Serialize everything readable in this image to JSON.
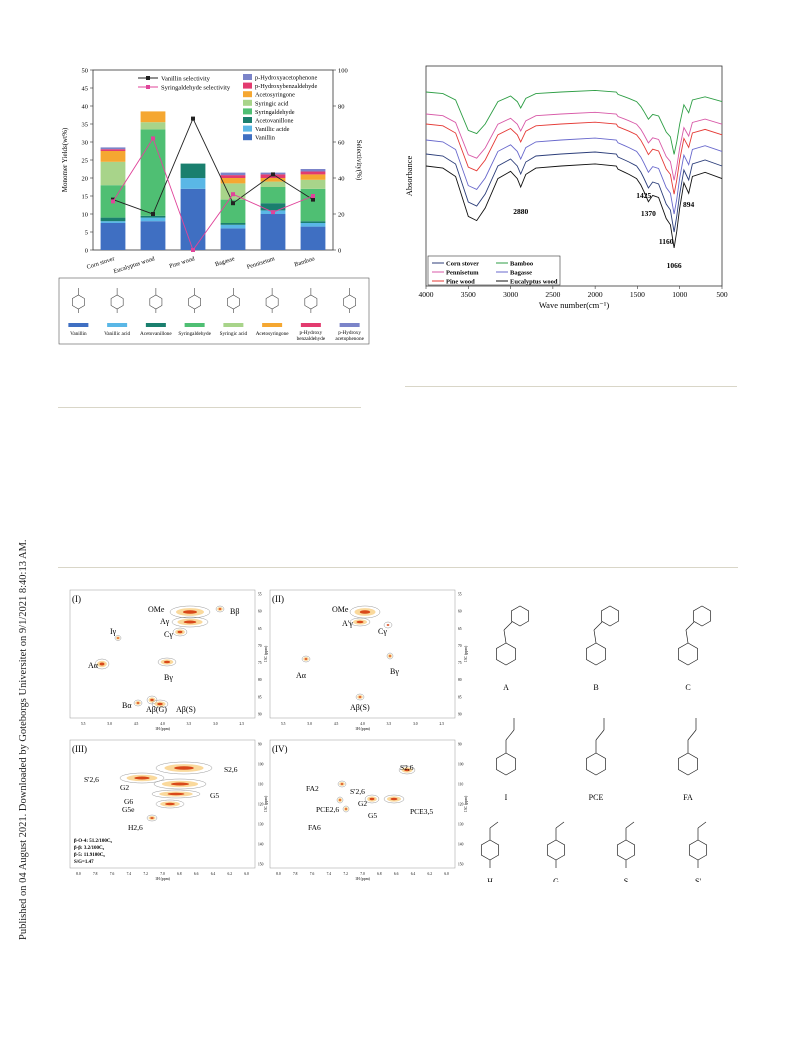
{
  "sidebar": {
    "publisher_note": "Published on 04 August 2021. Downloaded by Goteborgs Universitet on 9/1/2021 8:40:13 AM."
  },
  "chart_data": [
    {
      "type": "bar",
      "stacked": true,
      "categories": [
        "Corn stover",
        "Eucalyptus wood",
        "Pine wood",
        "Bagasse",
        "Pennisetum",
        "Bamboo"
      ],
      "ylabel": "Monomer Yields(wt%)",
      "y2label": "Selectivity(%)",
      "ylim": [
        0,
        50
      ],
      "y2lim": [
        0,
        100
      ],
      "yticks": [
        "0",
        "5",
        "10",
        "15",
        "20",
        "25",
        "30",
        "35",
        "40",
        "45",
        "50"
      ],
      "y2ticks": [
        "0",
        "20",
        "40",
        "60",
        "80",
        "100"
      ],
      "series": [
        {
          "name": "Vanillin",
          "color": "#3f6fc2",
          "values": [
            7.5,
            8,
            17,
            6,
            10,
            6.5
          ]
        },
        {
          "name": "Vanillic acide",
          "color": "#5ab7e6",
          "values": [
            0.5,
            1,
            3,
            1,
            1,
            1
          ]
        },
        {
          "name": "Acetovanillone",
          "color": "#1a7f6e",
          "values": [
            1,
            0.5,
            4,
            0.5,
            2,
            0.5
          ]
        },
        {
          "name": "Syringaldehyde",
          "color": "#4fbf73",
          "values": [
            9,
            24,
            0,
            6.5,
            4.5,
            9
          ]
        },
        {
          "name": "Syringic acid",
          "color": "#a8d48a",
          "values": [
            6.5,
            2,
            0,
            4.5,
            1.5,
            2.5
          ]
        },
        {
          "name": "Acetosyringone",
          "color": "#f5a731",
          "values": [
            3,
            3,
            0,
            1.5,
            1,
            1.5
          ]
        },
        {
          "name": "p-Hydroxybenzaldehyde",
          "color": "#e33b6f",
          "values": [
            0.5,
            0,
            0,
            0.8,
            1,
            0.8
          ]
        },
        {
          "name": "p-Hydroxyacetophenone",
          "color": "#7b84c9",
          "values": [
            0.5,
            0,
            0,
            0.7,
            0.5,
            0.7
          ]
        }
      ],
      "lines": [
        {
          "name": "Vanillin selectivity",
          "color": "#222222",
          "values": [
            28,
            20,
            73,
            26,
            42,
            28
          ]
        },
        {
          "name": "Syringaldehyde  selectivity",
          "color": "#e0449a",
          "values": [
            27,
            62,
            0,
            31,
            21,
            30
          ]
        }
      ],
      "structure_labels": [
        "Vanillin",
        "Vanillic acid",
        "Acetovanillone",
        "Syringaldehyde",
        "Syringic acid",
        "Acetosyringone",
        "p-Hydroxy benzaldehyde",
        "p-Hydroxy acetophenone"
      ]
    },
    {
      "type": "line",
      "xlabel": "Wave number(cm⁻¹)",
      "ylabel": "Absorbance",
      "xlim": [
        4000,
        500
      ],
      "xticks": [
        "4000",
        "3500",
        "3000",
        "2500",
        "2000",
        "1500",
        "1000",
        "500"
      ],
      "annotations": [
        "2880",
        "1425",
        "1370",
        "894",
        "1160",
        "1066"
      ],
      "series": [
        {
          "name": "Bamboo",
          "color": "#2e9e45"
        },
        {
          "name": "Pennisetum",
          "color": "#d85aa8"
        },
        {
          "name": "Pine wood",
          "color": "#e53a36"
        },
        {
          "name": "Bagasse",
          "color": "#6868cc"
        },
        {
          "name": "Corn stover",
          "color": "#2c3e7a"
        },
        {
          "name": "Eucalyptus wood",
          "color": "#111111"
        }
      ]
    }
  ],
  "nmr": {
    "panels": [
      "(I)",
      "(II)",
      "(III)",
      "(IV)"
    ],
    "p1_labels": [
      "OMe",
      "Bβ",
      "Aγ",
      "Cγ",
      "Iγ",
      "Aα",
      "Bγ",
      "Bα",
      "Aβ(G)",
      "Aβ(S)"
    ],
    "p2_labels": [
      "OMe",
      "A'γ",
      "Cγ",
      "Aα",
      "Bγ",
      "Aβ(S)"
    ],
    "p3_labels": [
      "S'2,6",
      "S2,6",
      "G2",
      "G5",
      "G6",
      "G5e",
      "H2,6"
    ],
    "p3_stats": [
      "β-O-4: 51.2/100C₉",
      "β-β: 3.2/100C₉",
      "β-5: 11.9100C₉",
      "S/G=1.47"
    ],
    "p4_labels": [
      "FA2",
      "S'2,6",
      "S2,6",
      "PCE2,6",
      "G2",
      "G5",
      "PCE3,5",
      "FA6"
    ],
    "top_x": [
      "5.5",
      "5.0",
      "4.5",
      "4.0",
      "3.5",
      "3.0",
      "2.5"
    ],
    "top_y": [
      "55",
      "60",
      "65",
      "70",
      "75",
      "80",
      "85",
      "90"
    ],
    "bot_x": [
      "8.0",
      "7.8",
      "7.6",
      "7.4",
      "7.2",
      "7.0",
      "6.8",
      "6.6",
      "6.4",
      "6.2",
      "6.0"
    ],
    "bot_y": [
      "90",
      "100",
      "110",
      "120",
      "130",
      "140",
      "150"
    ],
    "axis_x": "1H (ppm)",
    "axis_y": "13C (ppm)"
  },
  "structures": [
    "A",
    "B",
    "C",
    "I",
    "PCE",
    "FA",
    "H",
    "G",
    "S",
    "S'"
  ]
}
